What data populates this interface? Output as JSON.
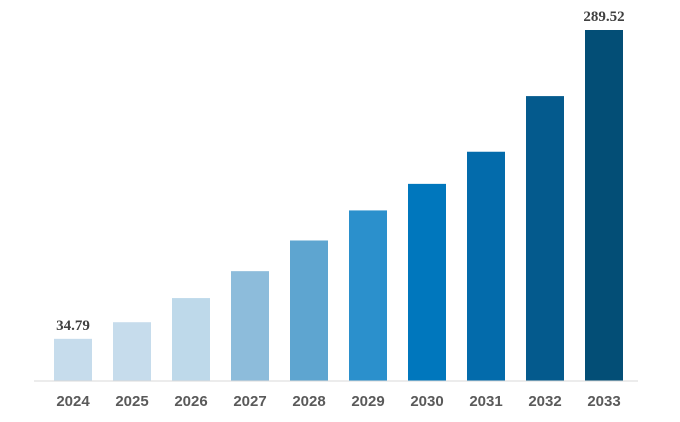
{
  "chart_data": {
    "type": "bar",
    "title": "",
    "xlabel": "",
    "ylabel": "",
    "categories": [
      "2024",
      "2025",
      "2026",
      "2027",
      "2028",
      "2029",
      "2030",
      "2031",
      "2032",
      "2033"
    ],
    "values": [
      34.79,
      48.5,
      68.4,
      90.6,
      115.9,
      140.7,
      162.6,
      189.1,
      235.0,
      289.52
    ],
    "data_labels": [
      "34.79",
      "",
      "",
      "",
      "",
      "",
      "",
      "",
      "",
      "289.52"
    ],
    "bar_colors": [
      "#c6dcec",
      "#c6dcec",
      "#bed9ea",
      "#8dbcdb",
      "#5ea5d0",
      "#2b90cc",
      "#0077bd",
      "#036bab",
      "#045a8d",
      "#034e76"
    ],
    "ylim": [
      0,
      300
    ],
    "grid": false,
    "legend": "none",
    "axis_line_color": "#d9d9d9"
  }
}
